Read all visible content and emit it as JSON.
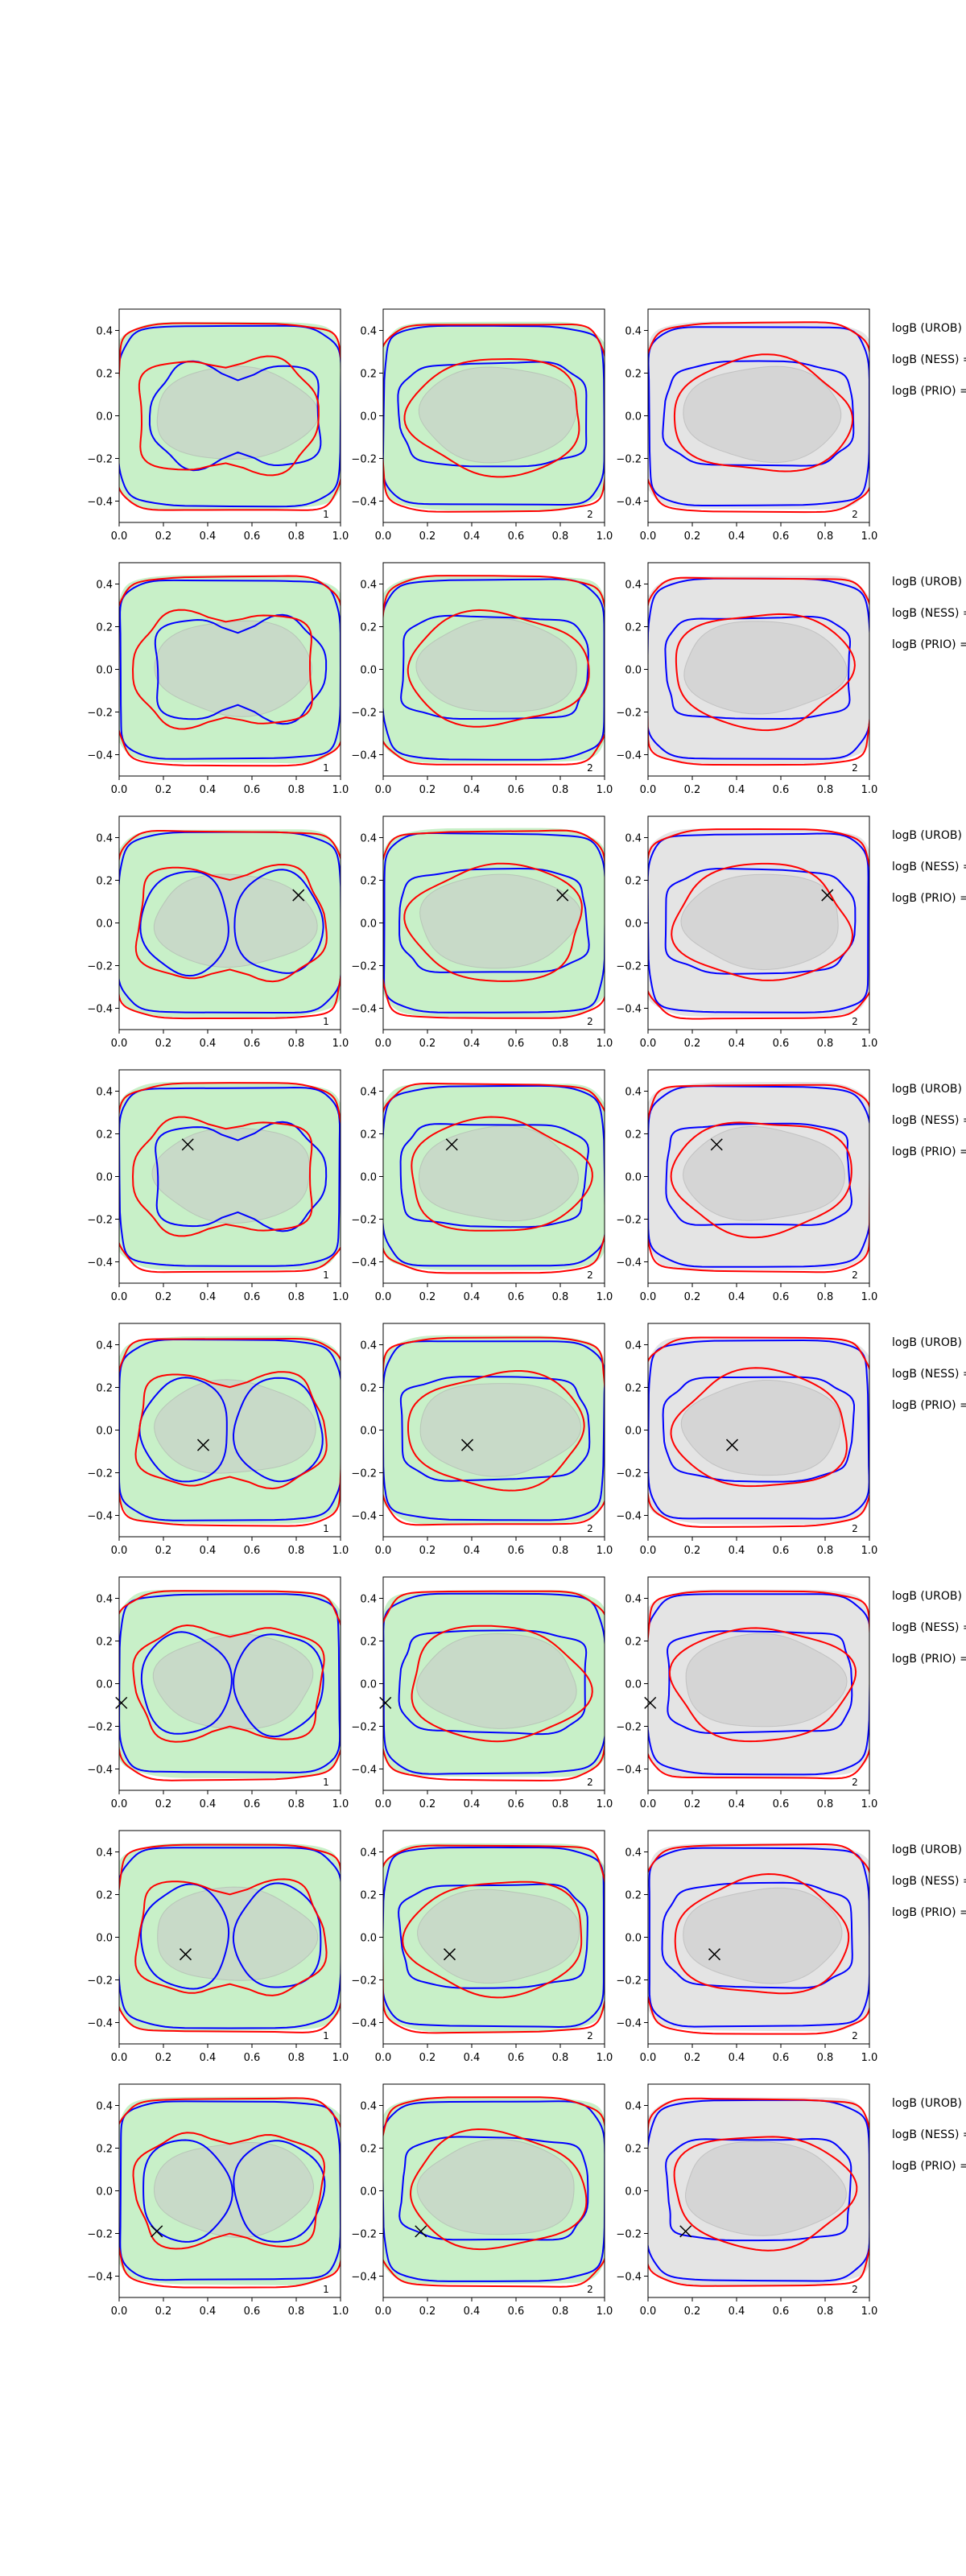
{
  "chart_data": {
    "type": "contour-grid",
    "rows": 8,
    "columns": 3,
    "xlim": [
      0.0,
      1.0
    ],
    "ylim": [
      -0.5,
      0.5
    ],
    "x_ticks": [
      "0.0",
      "0.2",
      "0.4",
      "0.6",
      "0.8",
      "1.0"
    ],
    "y_ticks": [
      "0.4",
      "0.2",
      "0.0",
      "−0.2",
      "−0.4"
    ],
    "x_tick_values": [
      0.0,
      0.2,
      0.4,
      0.6,
      0.8,
      1.0
    ],
    "y_tick_values": [
      0.4,
      0.2,
      0.0,
      -0.2,
      -0.4
    ],
    "column_corner_labels": [
      "1",
      "2",
      "2"
    ],
    "column_background": [
      "green",
      "green",
      "gray"
    ],
    "side_labels": [
      "logB (UROB) =",
      "logB (NESS) =",
      "logB (PRIO) ="
    ],
    "markers": [
      null,
      null,
      {
        "x": 0.81,
        "y": 0.13
      },
      {
        "x": 0.31,
        "y": 0.15
      },
      {
        "x": 0.38,
        "y": -0.07
      },
      {
        "x": 0.01,
        "y": -0.09
      },
      {
        "x": 0.3,
        "y": -0.08
      },
      {
        "x": 0.17,
        "y": -0.19
      }
    ],
    "colors": {
      "blue": "#0000ff",
      "red": "#ff0000",
      "green_fill": "#c8f0c8",
      "gray_fill": "#e4e4e4",
      "inner_gray": "#c8c8c8"
    }
  }
}
